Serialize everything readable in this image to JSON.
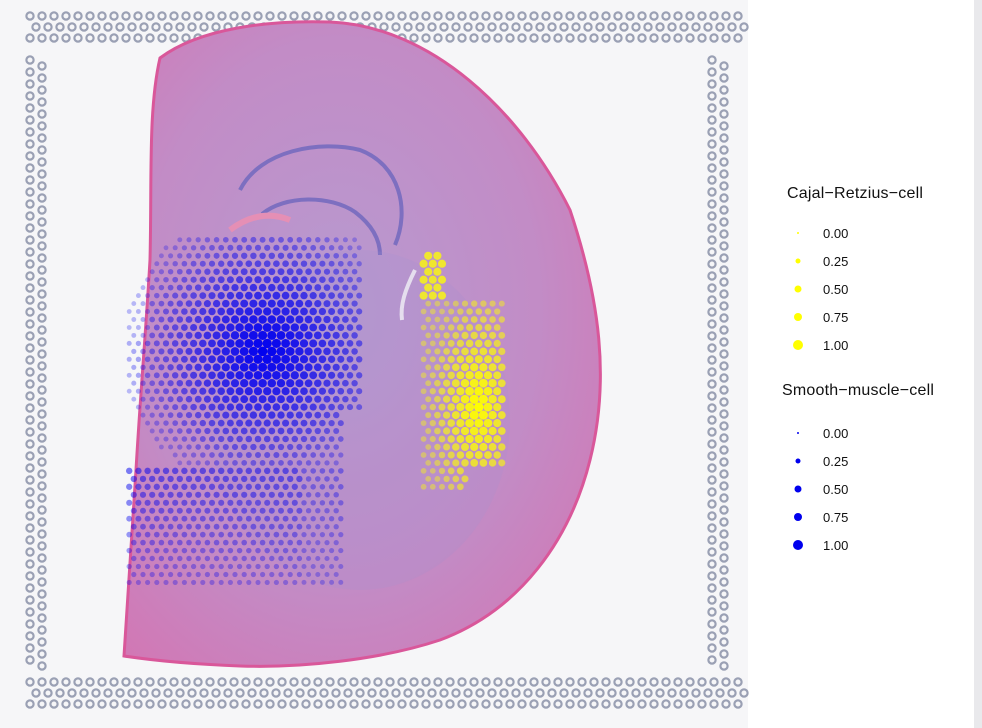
{
  "legend_cr": {
    "title": "Cajal−Retzius−cell",
    "color": "#ffff00",
    "entries": [
      "0.00",
      "0.25",
      "0.50",
      "0.75",
      "1.00"
    ]
  },
  "legend_smc": {
    "title": "Smooth−muscle−cell",
    "color": "#0000ee",
    "entries": [
      "0.00",
      "0.25",
      "0.50",
      "0.75",
      "1.00"
    ]
  },
  "colors": {
    "tissue": "#c98bc4",
    "tissue_edge": "#d64f8f",
    "fiducial": "#9aa0b4",
    "cr_spot": "#ffff00",
    "smc_spot": "#0000ee"
  }
}
